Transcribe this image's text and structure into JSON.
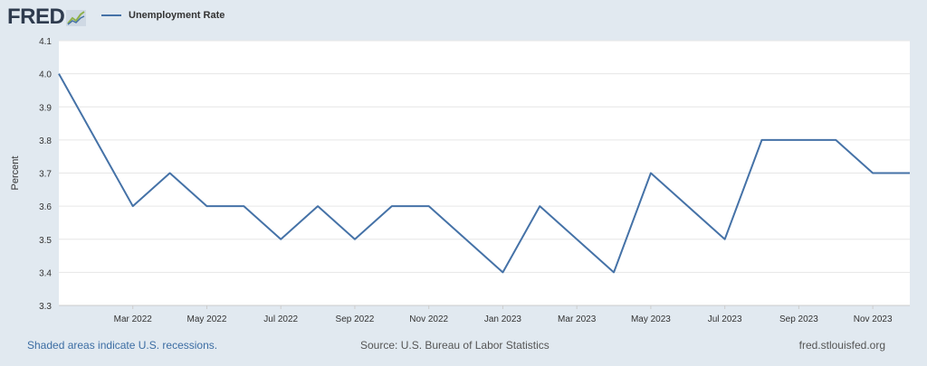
{
  "header": {
    "logo_text": "FRED",
    "logo_icon": "line-chart-icon"
  },
  "legend": {
    "label": "Unemployment Rate",
    "color": "#4572a7"
  },
  "chart_data": {
    "type": "line",
    "ylabel": "Percent",
    "ylim": [
      3.3,
      4.1
    ],
    "yticks": [
      3.3,
      3.4,
      3.5,
      3.6,
      3.7,
      3.8,
      3.9,
      4.0,
      4.1
    ],
    "x_start": "Jan 2022",
    "x_tick_labels": [
      "Mar 2022",
      "May 2022",
      "Jul 2022",
      "Sep 2022",
      "Nov 2022",
      "Jan 2023",
      "Mar 2023",
      "May 2023",
      "Jul 2023",
      "Sep 2023",
      "Nov 2023"
    ],
    "x_tick_indices": [
      2,
      4,
      6,
      8,
      10,
      12,
      14,
      16,
      18,
      20,
      22
    ],
    "x": [
      "Jan 2022",
      "Feb 2022",
      "Mar 2022",
      "Apr 2022",
      "May 2022",
      "Jun 2022",
      "Jul 2022",
      "Aug 2022",
      "Sep 2022",
      "Oct 2022",
      "Nov 2022",
      "Dec 2022",
      "Jan 2023",
      "Feb 2023",
      "Mar 2023",
      "Apr 2023",
      "May 2023",
      "Jun 2023",
      "Jul 2023",
      "Aug 2023",
      "Sep 2023",
      "Oct 2023",
      "Nov 2023",
      "Dec 2023"
    ],
    "series": [
      {
        "name": "Unemployment Rate",
        "values": [
          4.0,
          3.8,
          3.6,
          3.7,
          3.6,
          3.6,
          3.5,
          3.6,
          3.5,
          3.6,
          3.6,
          3.5,
          3.4,
          3.6,
          3.5,
          3.4,
          3.7,
          3.6,
          3.5,
          3.8,
          3.8,
          3.8,
          3.7,
          3.7
        ]
      }
    ],
    "grid": true,
    "legend_position": "top-left"
  },
  "footer": {
    "recessions_note": "Shaded areas indicate U.S. recessions.",
    "source": "Source: U.S. Bureau of Labor Statistics",
    "site": "fred.stlouisfed.org"
  }
}
